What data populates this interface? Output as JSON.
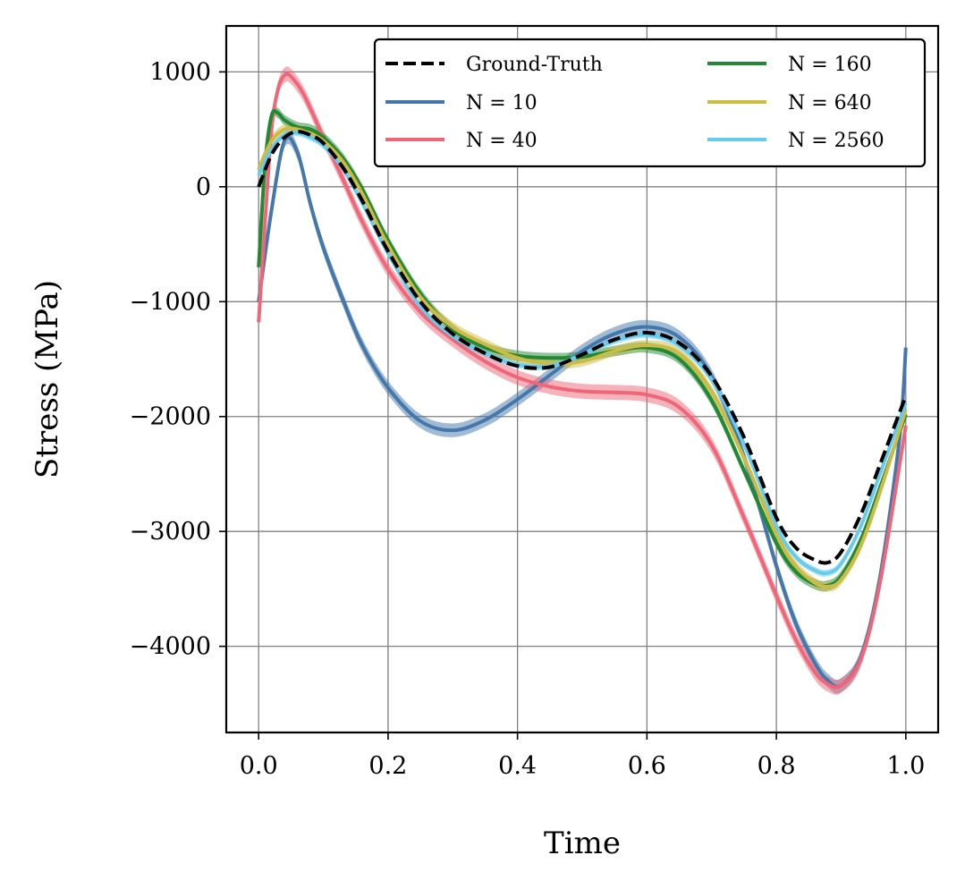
{
  "chart_data": {
    "type": "line",
    "title": "",
    "xlabel": "Time",
    "ylabel": "Stress (MPa)",
    "xlim": [
      -0.05,
      1.05
    ],
    "ylim": [
      -4750,
      1400
    ],
    "xticks": [
      0.0,
      0.2,
      0.4,
      0.6,
      0.8,
      1.0
    ],
    "xtick_labels": [
      "0.0",
      "0.2",
      "0.4",
      "0.6",
      "0.8",
      "1.0"
    ],
    "yticks": [
      1000,
      0,
      -1000,
      -2000,
      -3000,
      -4000
    ],
    "ytick_labels": [
      "1000",
      "0",
      "−1000",
      "−2000",
      "−3000",
      "−4000"
    ],
    "grid": true,
    "legend_position": "top-right",
    "legend_columns": 2,
    "series": [
      {
        "name": "Ground-Truth",
        "color": "#000000",
        "dashed": true,
        "band": 0,
        "x": [
          0,
          0.02,
          0.04,
          0.06,
          0.08,
          0.1,
          0.13,
          0.16,
          0.2,
          0.25,
          0.3,
          0.35,
          0.4,
          0.45,
          0.5,
          0.55,
          0.6,
          0.65,
          0.7,
          0.75,
          0.8,
          0.83,
          0.86,
          0.88,
          0.9,
          0.93,
          0.96,
          1.0
        ],
        "y": [
          0,
          280,
          430,
          480,
          450,
          380,
          170,
          -120,
          -560,
          -1000,
          -1280,
          -1450,
          -1560,
          -1570,
          -1460,
          -1330,
          -1270,
          -1360,
          -1650,
          -2180,
          -2880,
          -3140,
          -3250,
          -3270,
          -3180,
          -2860,
          -2420,
          -1820
        ]
      },
      {
        "name": "N = 10",
        "color": "#4477AA",
        "dashed": false,
        "band": 60,
        "x": [
          0,
          0.02,
          0.04,
          0.06,
          0.08,
          0.1,
          0.13,
          0.16,
          0.2,
          0.25,
          0.3,
          0.35,
          0.4,
          0.45,
          0.5,
          0.55,
          0.6,
          0.65,
          0.7,
          0.75,
          0.8,
          0.83,
          0.86,
          0.88,
          0.9,
          0.93,
          0.96,
          0.99,
          1.0
        ],
        "y": [
          -1000,
          -200,
          400,
          300,
          -150,
          -530,
          -980,
          -1380,
          -1750,
          -2040,
          -2120,
          -2030,
          -1850,
          -1640,
          -1430,
          -1280,
          -1220,
          -1310,
          -1650,
          -2350,
          -3300,
          -3800,
          -4150,
          -4300,
          -4340,
          -4100,
          -3400,
          -2200,
          -1400
        ]
      },
      {
        "name": "N = 40",
        "color": "#EE6677",
        "dashed": false,
        "band": 65,
        "x": [
          0,
          0.01,
          0.02,
          0.03,
          0.04,
          0.05,
          0.07,
          0.1,
          0.13,
          0.16,
          0.2,
          0.25,
          0.3,
          0.35,
          0.4,
          0.45,
          0.5,
          0.55,
          0.6,
          0.65,
          0.7,
          0.75,
          0.8,
          0.83,
          0.86,
          0.88,
          0.9,
          0.93,
          0.96,
          1.0
        ],
        "y": [
          -1180,
          -300,
          500,
          850,
          970,
          960,
          800,
          430,
          70,
          -300,
          -720,
          -1090,
          -1330,
          -1520,
          -1660,
          -1740,
          -1780,
          -1790,
          -1810,
          -1920,
          -2250,
          -2880,
          -3560,
          -3940,
          -4230,
          -4330,
          -4340,
          -4120,
          -3450,
          -2080
        ]
      },
      {
        "name": "N = 160",
        "color": "#228833",
        "dashed": false,
        "band": 45,
        "x": [
          0,
          0.01,
          0.02,
          0.03,
          0.04,
          0.06,
          0.08,
          0.1,
          0.13,
          0.16,
          0.2,
          0.25,
          0.3,
          0.35,
          0.4,
          0.45,
          0.5,
          0.55,
          0.6,
          0.65,
          0.7,
          0.75,
          0.8,
          0.83,
          0.86,
          0.88,
          0.9,
          0.93,
          0.96,
          1.0
        ],
        "y": [
          -700,
          200,
          620,
          640,
          580,
          520,
          500,
          430,
          250,
          -20,
          -470,
          -930,
          -1240,
          -1400,
          -1470,
          -1490,
          -1480,
          -1430,
          -1400,
          -1500,
          -1860,
          -2470,
          -3100,
          -3350,
          -3460,
          -3470,
          -3390,
          -3080,
          -2620,
          -1980
        ]
      },
      {
        "name": "N = 640",
        "color": "#CCBB44",
        "dashed": false,
        "band": 45,
        "x": [
          0,
          0.02,
          0.04,
          0.06,
          0.08,
          0.1,
          0.13,
          0.16,
          0.2,
          0.25,
          0.3,
          0.35,
          0.4,
          0.45,
          0.5,
          0.55,
          0.6,
          0.65,
          0.7,
          0.75,
          0.8,
          0.83,
          0.86,
          0.88,
          0.9,
          0.93,
          0.96,
          1.0
        ],
        "y": [
          150,
          400,
          500,
          500,
          460,
          400,
          220,
          -60,
          -510,
          -960,
          -1220,
          -1370,
          -1490,
          -1540,
          -1520,
          -1430,
          -1380,
          -1450,
          -1780,
          -2360,
          -3020,
          -3300,
          -3450,
          -3480,
          -3420,
          -3130,
          -2660,
          -1940
        ]
      },
      {
        "name": "N = 2560",
        "color": "#66CCEE",
        "dashed": false,
        "band": 30,
        "x": [
          0,
          0.02,
          0.04,
          0.06,
          0.08,
          0.1,
          0.13,
          0.16,
          0.2,
          0.25,
          0.3,
          0.35,
          0.4,
          0.45,
          0.5,
          0.55,
          0.6,
          0.65,
          0.7,
          0.75,
          0.8,
          0.83,
          0.86,
          0.88,
          0.9,
          0.93,
          0.96,
          1.0
        ],
        "y": [
          100,
          330,
          450,
          470,
          430,
          360,
          160,
          -140,
          -580,
          -1040,
          -1300,
          -1450,
          -1550,
          -1560,
          -1460,
          -1340,
          -1290,
          -1380,
          -1680,
          -2240,
          -2950,
          -3220,
          -3340,
          -3360,
          -3280,
          -2960,
          -2500,
          -1880
        ]
      }
    ]
  }
}
